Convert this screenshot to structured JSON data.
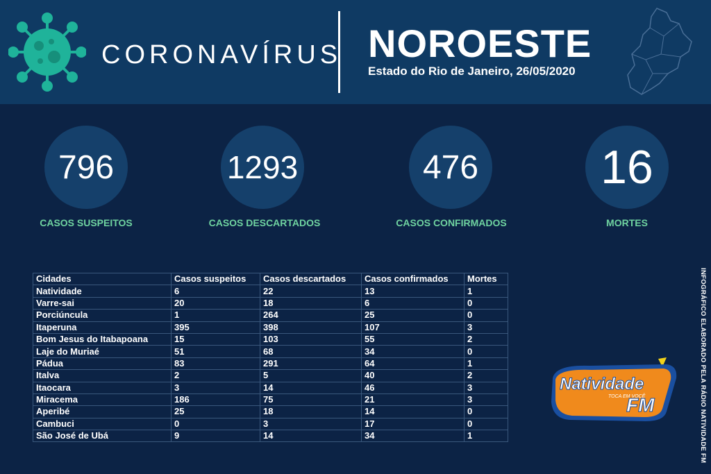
{
  "header": {
    "brand": "CORONAVÍRUS",
    "region": "NOROESTE",
    "subtitle": "Estado do Rio de Janeiro, 26/05/2020",
    "icons": [
      "virus-icon",
      "region-map-icon"
    ]
  },
  "stats": [
    {
      "value": "796",
      "label": "CASOS SUSPEITOS"
    },
    {
      "value": "1293",
      "label": "CASOS DESCARTADOS"
    },
    {
      "value": "476",
      "label": "CASOS CONFIRMADOS"
    },
    {
      "value": "16",
      "label": "MORTES"
    }
  ],
  "table": {
    "headers": [
      "Cidades",
      "Casos suspeitos",
      "Casos descartados",
      "Casos confirmados",
      "Mortes"
    ],
    "rows": [
      [
        "Natividade",
        "6",
        "22",
        "13",
        "1"
      ],
      [
        "Varre-sai",
        "20",
        "18",
        "6",
        "0"
      ],
      [
        "Porciúncula",
        "1",
        "264",
        "25",
        "0"
      ],
      [
        "Itaperuna",
        "395",
        "398",
        "107",
        "3"
      ],
      [
        "Bom Jesus do Itabapoana",
        "15",
        "103",
        "55",
        "2"
      ],
      [
        "Laje do Muriaé",
        "51",
        "68",
        "34",
        "0"
      ],
      [
        "Pádua",
        "83",
        "291",
        "64",
        "1"
      ],
      [
        "Italva",
        "2",
        "5",
        "40",
        "2"
      ],
      [
        "Itaocara",
        "3",
        "14",
        "46",
        "3"
      ],
      [
        "Miracema",
        "186",
        "75",
        "21",
        "3"
      ],
      [
        "Aperibé",
        "25",
        "18",
        "14",
        "0"
      ],
      [
        "Cambuci",
        "0",
        "3",
        "17",
        "0"
      ],
      [
        "São José de Ubá",
        "9",
        "14",
        "34",
        "1"
      ]
    ]
  },
  "logo": {
    "name": "Natividade",
    "tagline": "TOCA EM VOCÊ",
    "fm": "FM"
  },
  "credit": "INFOGRÁFICO ELABORADO PELA RÁDIO NATIVIDADE FM",
  "colors": {
    "background": "#0c2345",
    "header": "#0f3a63",
    "circle": "#15406b",
    "accent_green": "#6fd3a0",
    "virus": "#1fb39a",
    "logo_orange": "#f08a1c",
    "logo_blue": "#1a4fa0"
  }
}
